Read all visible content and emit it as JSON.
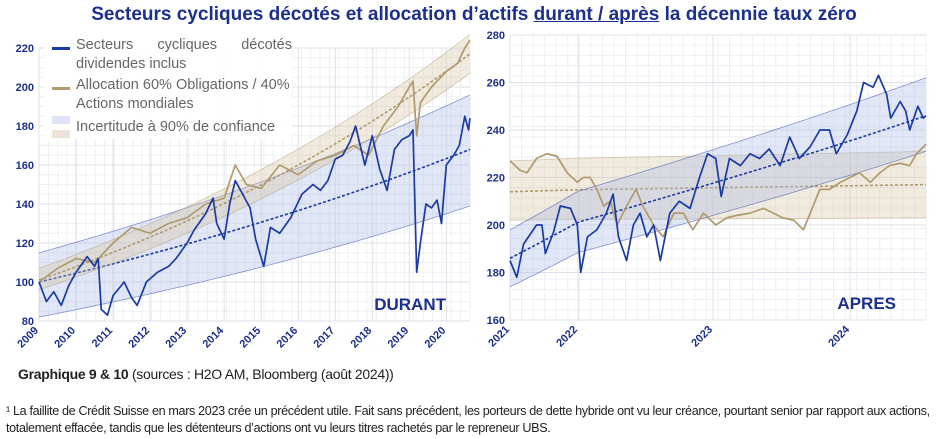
{
  "title": {
    "before": "Secteurs cycliques décotés et allocation d’actifs ",
    "underlined": "durant / après",
    "after": " la décennie taux zéro"
  },
  "caption": {
    "bold": "Graphique 9 & 10",
    "rest": " (sources : H2O AM, Bloomberg (août 2024))"
  },
  "footnote": "¹ La faillite de Crédit Suisse en mars 2023 crée un précédent utile. Fait sans précédent, les porteurs de dette hybride ont vu leur créance, pourtant senior par rapport aux actions, totalement effacée, tandis que les détenteurs d’actions ont vu leurs titres rachetés par le repreneur UBS.",
  "colors": {
    "blue": "#1a3aa6",
    "gold": "#b09a6e",
    "blue_band": "#dfe4f5",
    "gold_band": "#f1ebdf",
    "title": "#1b2f8f"
  },
  "legend": {
    "items": [
      {
        "label": "Secteurs cycliques décotés dividendes inclus",
        "type": "line",
        "color": "#1a3aa6"
      },
      {
        "label": "Allocation 60% Obligations / 40% Actions mondiales",
        "type": "line",
        "color": "#b09a6e"
      },
      {
        "label": "Incertitude à 90% de confiance",
        "type": "band"
      }
    ]
  },
  "chart_data": [
    {
      "type": "line",
      "label": "DURANT",
      "grid": true,
      "xlim": [
        2009,
        2020.64
      ],
      "ylim": [
        80,
        220
      ],
      "xticks": [
        "2009",
        "2010",
        "2011",
        "2012",
        "2013",
        "2014",
        "2015",
        "2016",
        "2017",
        "2018",
        "2019",
        "2020"
      ],
      "yticks": [
        80,
        100,
        120,
        140,
        160,
        180,
        200,
        220
      ],
      "series": [
        {
          "name": "Secteurs cycliques décotés dividendes inclus",
          "color": "#1a3aa6",
          "x": [
            2009.0,
            2009.2,
            2009.4,
            2009.6,
            2009.8,
            2010.0,
            2010.3,
            2010.5,
            2010.6,
            2010.68,
            2010.85,
            2011.0,
            2011.3,
            2011.5,
            2011.65,
            2011.9,
            2012.2,
            2012.5,
            2012.7,
            2013.0,
            2013.2,
            2013.5,
            2013.7,
            2013.8,
            2014.0,
            2014.15,
            2014.3,
            2014.5,
            2014.7,
            2014.85,
            2015.07,
            2015.25,
            2015.5,
            2015.8,
            2016.1,
            2016.4,
            2016.6,
            2016.8,
            2017.0,
            2017.2,
            2017.4,
            2017.55,
            2017.8,
            2018.0,
            2018.2,
            2018.4,
            2018.6,
            2018.8,
            2019.0,
            2019.1,
            2019.2,
            2019.3,
            2019.45,
            2019.6,
            2019.75,
            2019.87,
            2020.0,
            2020.2,
            2020.35,
            2020.5,
            2020.6,
            2020.64
          ],
          "y": [
            100,
            90,
            95,
            88,
            98,
            105,
            113,
            108,
            112,
            86,
            83,
            93,
            100,
            92,
            88,
            100,
            105,
            108,
            112,
            120,
            127,
            135,
            143,
            130,
            122,
            140,
            152,
            145,
            138,
            122,
            108,
            128,
            125,
            133,
            145,
            150,
            147,
            152,
            163,
            165,
            172,
            180,
            160,
            175,
            158,
            147,
            168,
            173,
            175,
            178,
            105,
            120,
            140,
            138,
            142,
            130,
            160,
            165,
            170,
            185,
            178,
            184
          ]
        },
        {
          "name": "Allocation 60% Obligations / 40% Actions mondiales",
          "color": "#b09a6e",
          "x": [
            2009.0,
            2009.5,
            2010.0,
            2010.5,
            2011.0,
            2011.5,
            2012.0,
            2012.5,
            2013.0,
            2013.5,
            2014.0,
            2014.3,
            2014.6,
            2015.0,
            2015.5,
            2016.0,
            2016.5,
            2017.0,
            2017.5,
            2017.9,
            2018.3,
            2018.7,
            2019.0,
            2019.1,
            2019.2,
            2019.3,
            2019.6,
            2020.0,
            2020.3,
            2020.5,
            2020.64
          ],
          "y": [
            100,
            107,
            112,
            110,
            120,
            128,
            125,
            130,
            133,
            140,
            143,
            160,
            150,
            148,
            160,
            155,
            162,
            165,
            170,
            165,
            180,
            190,
            200,
            203,
            175,
            192,
            200,
            208,
            212,
            220,
            224
          ]
        }
      ],
      "bands": [
        {
          "color": "#1a3aa6",
          "trend": [
            100,
            168
          ],
          "lower": [
            82,
            139
          ],
          "upper": [
            115,
            196
          ]
        },
        {
          "color": "#b09a6e",
          "trend": [
            101,
            217
          ],
          "lower": [
            96,
            207
          ],
          "upper": [
            107,
            227
          ]
        }
      ]
    },
    {
      "type": "line",
      "label": "APRES",
      "grid": true,
      "xlim": [
        2021,
        2024.56
      ],
      "ylim": [
        160,
        280
      ],
      "xticks": [
        "2021",
        "2022",
        "2023",
        "2024"
      ],
      "yticks": [
        160,
        180,
        200,
        220,
        240,
        260,
        280
      ],
      "series": [
        {
          "name": "Secteurs cycliques décotés dividendes inclus",
          "color": "#1a3aa6",
          "x": [
            2021.0,
            2021.1,
            2021.2,
            2021.39,
            2021.47,
            2021.52,
            2021.64,
            2021.74,
            2021.89,
            2021.99,
            2022.02,
            2022.07,
            2022.14,
            2022.21,
            2022.26,
            2022.3,
            2022.36,
            2022.41,
            2022.46,
            2022.51,
            2022.56,
            2022.61,
            2022.68,
            2022.75,
            2022.83,
            2022.9,
            2022.96,
            2023.02,
            2023.06,
            2023.12,
            2023.2,
            2023.27,
            2023.34,
            2023.41,
            2023.49,
            2023.56,
            2023.63,
            2023.71,
            2023.78,
            2023.85,
            2023.9,
            2023.98,
            2024.05,
            2024.1,
            2024.17,
            2024.21,
            2024.27,
            2024.3,
            2024.37,
            2024.41,
            2024.44,
            2024.5,
            2024.54,
            2024.56
          ],
          "y": [
            185,
            178,
            192,
            200,
            200,
            188,
            197,
            208,
            207,
            200,
            180,
            195,
            198,
            205,
            213,
            195,
            185,
            200,
            205,
            195,
            200,
            185,
            205,
            210,
            207,
            220,
            230,
            228,
            212,
            228,
            225,
            230,
            228,
            232,
            225,
            237,
            228,
            233,
            240,
            240,
            230,
            238,
            248,
            260,
            258,
            263,
            255,
            245,
            252,
            248,
            240,
            250,
            245,
            246
          ]
        },
        {
          "name": "Allocation 60% Obligations / 40% Actions mondiales",
          "color": "#b09a6e",
          "x": [
            2021.0,
            2021.15,
            2021.25,
            2021.39,
            2021.54,
            2021.69,
            2021.84,
            2021.99,
            2022.04,
            2022.09,
            2022.14,
            2022.19,
            2022.24,
            2022.29,
            2022.36,
            2022.43,
            2022.48,
            2022.56,
            2022.63,
            2022.71,
            2022.78,
            2022.85,
            2022.93,
            2023.02,
            2023.1,
            2023.17,
            2023.27,
            2023.37,
            2023.44,
            2023.51,
            2023.59,
            2023.66,
            2023.71,
            2023.78,
            2023.85,
            2023.93,
            2024.0,
            2024.07,
            2024.15,
            2024.22,
            2024.29,
            2024.37,
            2024.44,
            2024.49,
            2024.56
          ],
          "y": [
            227,
            223,
            222,
            228,
            230,
            229,
            222,
            218,
            220,
            220,
            215,
            208,
            210,
            200,
            208,
            215,
            208,
            200,
            195,
            205,
            205,
            198,
            205,
            200,
            203,
            204,
            205,
            207,
            205,
            203,
            202,
            198,
            205,
            215,
            215,
            218,
            220,
            222,
            218,
            222,
            225,
            226,
            225,
            230,
            234
          ]
        }
      ],
      "bands": [
        {
          "color": "#b09a6e",
          "trend": [
            214,
            217
          ],
          "lower": [
            202,
            203
          ],
          "upper": [
            227,
            231
          ]
        },
        {
          "color": "#1a3aa6",
          "trend": [
            186,
            246
          ],
          "lower": [
            174,
            231
          ],
          "upper": [
            198,
            262
          ]
        }
      ]
    }
  ]
}
